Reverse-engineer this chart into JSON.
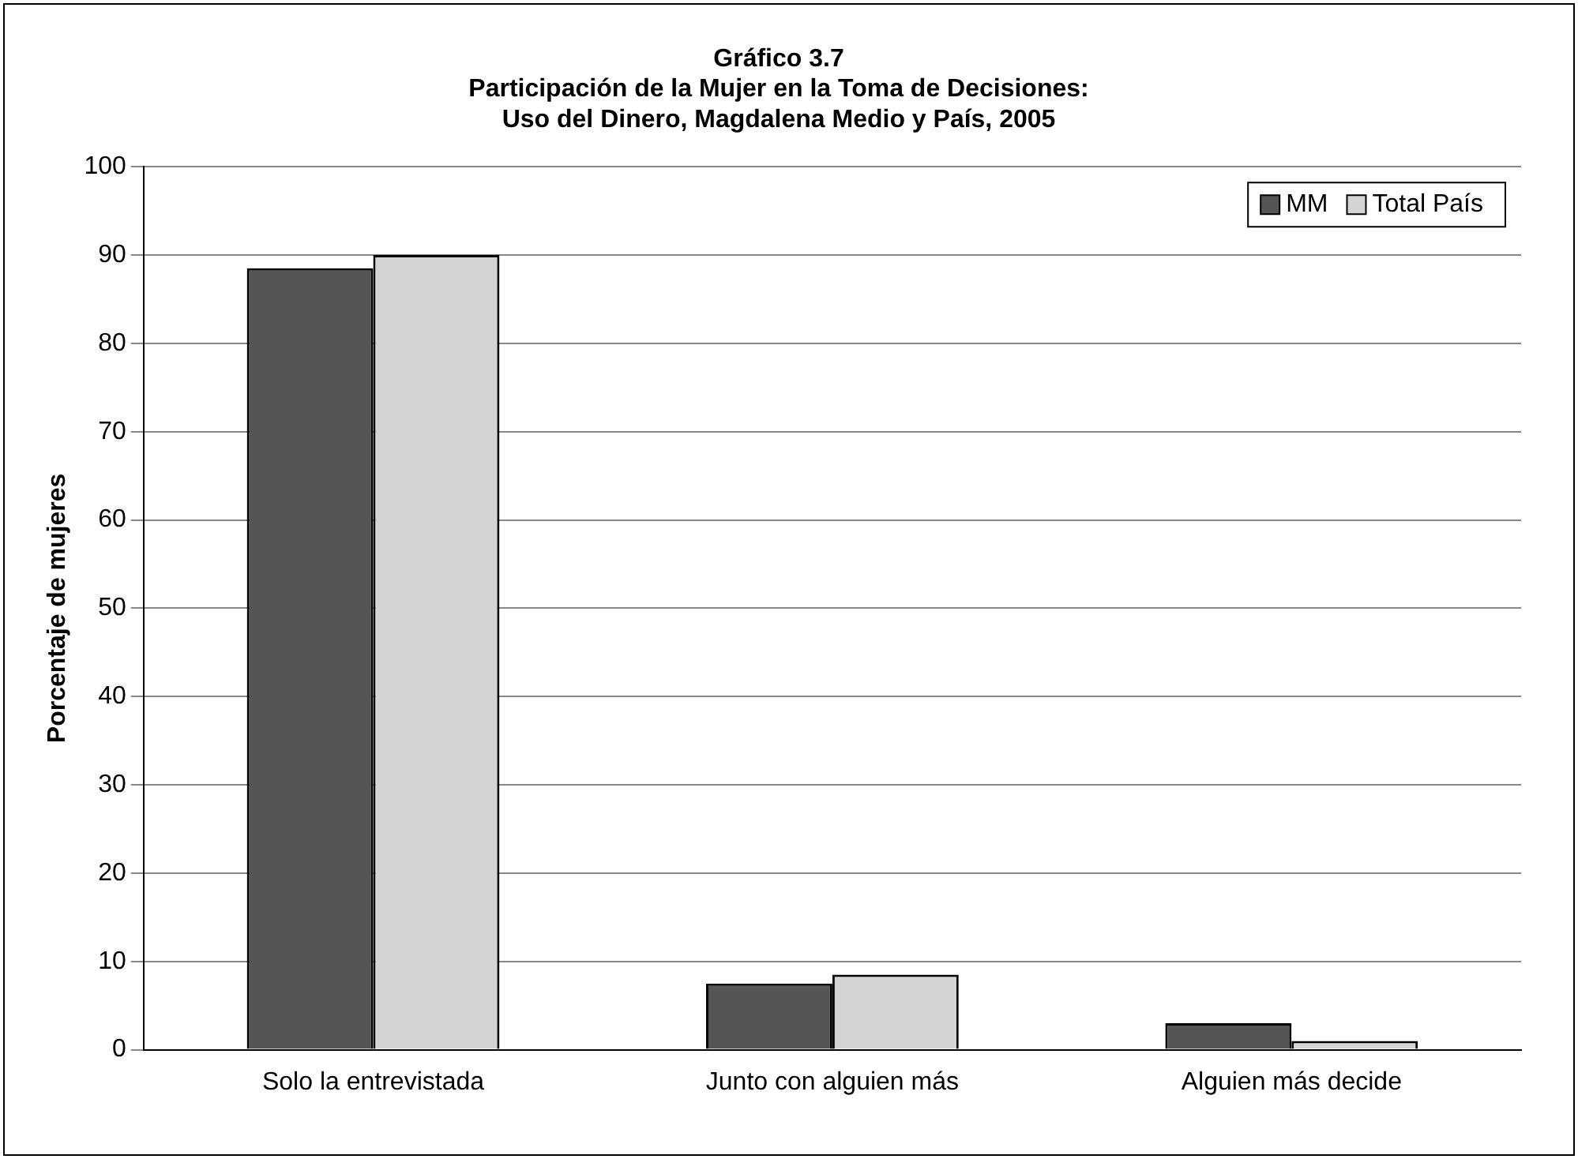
{
  "chart_data": {
    "type": "bar",
    "title": [
      "Gráfico 3.7",
      "Participación de la Mujer en la Toma de Decisiones:",
      "Uso del Dinero, Magdalena Medio y País, 2005"
    ],
    "ylabel": "Porcentaje de mujeres",
    "categories": [
      "Solo la entrevistada",
      "Junto con alguien más",
      "Alguien más decide"
    ],
    "series": [
      {
        "name": "MM",
        "color": "#555555",
        "values": [
          88.5,
          7.5,
          3
        ]
      },
      {
        "name": "Total País",
        "color": "#d4d4d4",
        "values": [
          90,
          8.5,
          1
        ]
      }
    ],
    "ylim": [
      0,
      100
    ],
    "yticks": [
      0,
      10,
      20,
      30,
      40,
      50,
      60,
      70,
      80,
      90,
      100
    ],
    "grid": "y",
    "legend": "top right"
  }
}
